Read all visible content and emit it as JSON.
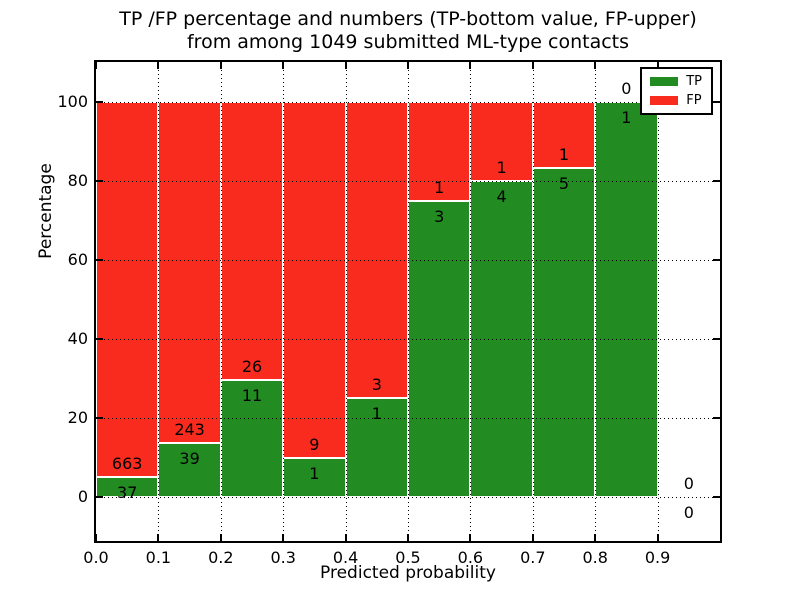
{
  "chart_data": {
    "type": "bar",
    "stacked": true,
    "title_line1": "TP /FP percentage and numbers (TP-bottom value, FP-upper)",
    "title_line2": "from among 1049 submitted ML-type contacts",
    "xlabel": "Predicted probability",
    "ylabel": "Percentage",
    "total_contacts": 1049,
    "bin_edges": [
      0.0,
      0.1,
      0.2,
      0.3,
      0.4,
      0.5,
      0.6,
      0.7,
      0.8,
      0.9,
      1.0
    ],
    "series": [
      {
        "name": "TP",
        "color": "#228b22",
        "counts": [
          37,
          39,
          11,
          1,
          1,
          3,
          4,
          5,
          1,
          0
        ]
      },
      {
        "name": "FP",
        "color": "#f92b1e",
        "counts": [
          663,
          243,
          26,
          9,
          3,
          1,
          1,
          1,
          0,
          0
        ]
      }
    ],
    "tp_percentages": [
      5.29,
      13.83,
      29.73,
      10.0,
      25.0,
      75.0,
      80.0,
      83.33,
      100.0,
      0.0
    ],
    "x_tick_labels": [
      "0.0",
      "0.1",
      "0.2",
      "0.3",
      "0.4",
      "0.5",
      "0.6",
      "0.7",
      "0.8",
      "0.9"
    ],
    "x_tick_values": [
      0.0,
      0.1,
      0.2,
      0.3,
      0.4,
      0.5,
      0.6,
      0.7,
      0.8,
      0.9
    ],
    "y_tick_values": [
      0,
      20,
      40,
      60,
      80,
      100
    ],
    "xlim": [
      0.0,
      1.0
    ],
    "ylim": [
      -11,
      110
    ],
    "grid": "dotted",
    "bar_edge_color": "#ffffff",
    "legend": {
      "position": "upper-right",
      "entries": [
        {
          "label": "TP",
          "color": "#228b22"
        },
        {
          "label": "FP",
          "color": "#f92b1e"
        }
      ]
    }
  }
}
